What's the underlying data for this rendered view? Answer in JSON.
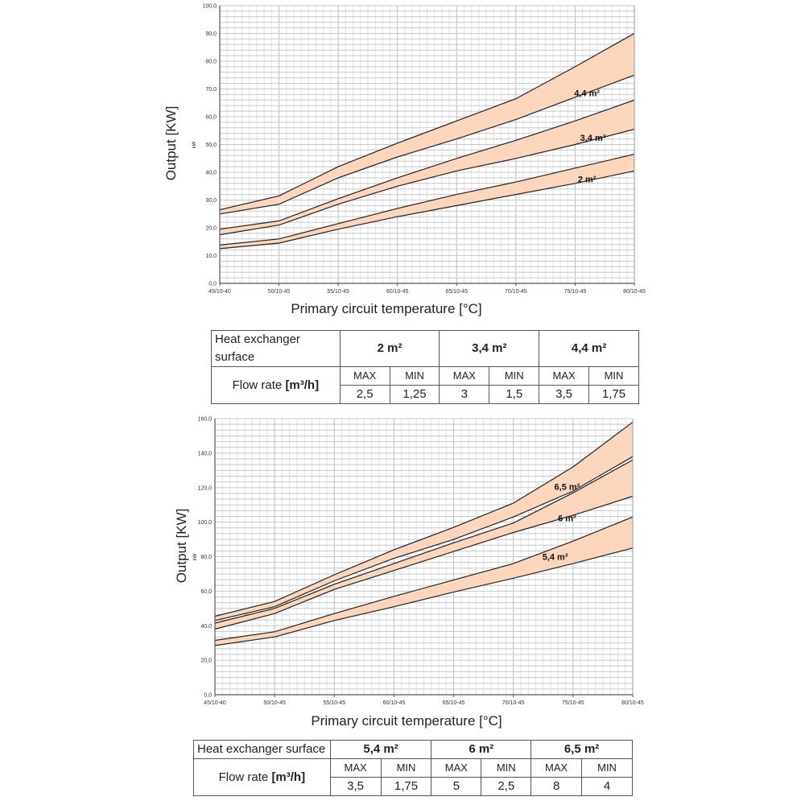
{
  "chart_data": [
    {
      "type": "area",
      "title": "",
      "xlabel": "Primary circuit temperature [°C]",
      "ylabel": "Output [KW]",
      "ylabel_small": "kW",
      "categories": [
        "45/10-40",
        "50/10-45",
        "55/10-45",
        "60/10-45",
        "65/10-45",
        "70/10-45",
        "75/10-45",
        "80/10-45"
      ],
      "ylim": [
        0,
        100
      ],
      "yticks": [
        0,
        10,
        20,
        30,
        40,
        50,
        60,
        70,
        80,
        90,
        100
      ],
      "ytick_labels": [
        "0,0",
        "10,0",
        "20,0",
        "30,0",
        "40,0",
        "50,0",
        "60,0",
        "70,0",
        "80,0",
        "90,0",
        "100,0"
      ],
      "grid": true,
      "band_color": "#fcd6bc",
      "series": [
        {
          "name": "2 m²",
          "label": "2 m²",
          "min": [
            12.5,
            14.5,
            19.5,
            24,
            28,
            32,
            36,
            40.5
          ],
          "max": [
            13.8,
            16,
            21.5,
            27,
            32,
            36.5,
            41.5,
            46.5
          ],
          "label_at": [
            6.2,
            37.5
          ]
        },
        {
          "name": "3,4 m²",
          "label": "3,4 m²",
          "min": [
            17.5,
            21,
            28.5,
            35,
            40.5,
            45,
            50,
            55.5
          ],
          "max": [
            19.5,
            22.5,
            30.5,
            38,
            45,
            51.5,
            58.5,
            66
          ],
          "label_at": [
            6.3,
            52.5
          ]
        },
        {
          "name": "4,4 m²",
          "label": "4,4 m²",
          "min": [
            25,
            28.5,
            38,
            45.5,
            52,
            59,
            67,
            75
          ],
          "max": [
            26.5,
            31.5,
            42,
            50.5,
            58.5,
            66.5,
            78,
            90
          ],
          "label_at": [
            6.2,
            68.5
          ]
        }
      ]
    },
    {
      "type": "area",
      "title": "",
      "xlabel": "Primary circuit temperature [°C]",
      "ylabel": "Output [KW]",
      "ylabel_small": "kW",
      "categories": [
        "45/10-40",
        "50/10-45",
        "55/10-45",
        "60/10-45",
        "65/10-45",
        "70/10-45",
        "75/10-45",
        "80/10-45"
      ],
      "ylim": [
        0,
        160
      ],
      "yticks": [
        0,
        20,
        40,
        60,
        80,
        100,
        120,
        140,
        160
      ],
      "ytick_labels": [
        "0,0",
        "20,0",
        "40,0",
        "60,0",
        "80,0",
        "100,0",
        "120,0",
        "140,0",
        "160,0"
      ],
      "grid": true,
      "band_color": "#fcd6bc",
      "series": [
        {
          "name": "5,4 m²",
          "label": "5,4 m²",
          "min": [
            28.5,
            33.5,
            43,
            51,
            59.5,
            67.5,
            76,
            85
          ],
          "max": [
            31.5,
            36.5,
            47,
            57,
            66.5,
            76,
            89,
            103
          ],
          "label_at": [
            5.7,
            80
          ]
        },
        {
          "name": "6 m²",
          "label": "6 m²",
          "min": [
            38,
            47,
            61,
            72,
            83,
            94,
            104,
            115
          ],
          "max": [
            41.5,
            50,
            64,
            76,
            88,
            99.5,
            117,
            136
          ],
          "label_at": [
            5.9,
            102.5
          ]
        },
        {
          "name": "6,5 m²",
          "label": "6,5 m²",
          "min": [
            43,
            51,
            66,
            79,
            90,
            103,
            118,
            138
          ],
          "max": [
            45.5,
            54,
            69.5,
            84,
            97,
            111,
            132,
            158
          ],
          "label_at": [
            5.9,
            120.5
          ]
        }
      ]
    }
  ],
  "table1": {
    "header_label": "Heat exchanger surface",
    "surfaces": [
      "2 m²",
      "3,4 m²",
      "4,4 m²"
    ],
    "flow_label": "Flow rate",
    "flow_unit": "[m³/h]",
    "max_label": "MAX",
    "min_label": "MIN",
    "values": [
      "2,5",
      "1,25",
      "3",
      "1,5",
      "3,5",
      "1,75"
    ]
  },
  "table2": {
    "header_label": "Heat exchanger surface",
    "surfaces": [
      "5,4 m²",
      "6 m²",
      "6,5 m²"
    ],
    "flow_label": "Flow rate",
    "flow_unit": "[m³/h]",
    "max_label": "MAX",
    "min_label": "MIN",
    "values": [
      "3,5",
      "1,75",
      "5",
      "2,5",
      "8",
      "4"
    ]
  }
}
